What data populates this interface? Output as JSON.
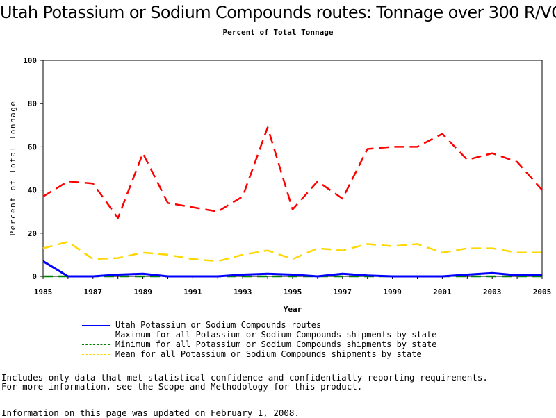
{
  "header": {
    "title": "Utah Potassium or Sodium Compounds routes: Tonnage over 300 R/VC",
    "subtitle": "Percent of Total Tonnage"
  },
  "notes": {
    "line1": "Includes only data that met statistical confidence and confidentialty reporting requirements.",
    "line2": "For more information, see the Scope and Methodology for this product.",
    "line3": "Information on this page was updated on February 1, 2008."
  },
  "colors": {
    "utah": "#0000ff",
    "maximum": "#ff0000",
    "minimum": "#008000",
    "mean": "#ffd700"
  },
  "chart_data": {
    "type": "line",
    "title": "Utah Potassium or Sodium Compounds routes: Tonnage over 300 R/VC",
    "subtitle": "Percent of Total Tonnage",
    "xlabel": "Year",
    "ylabel": "Percent of Total Tonnage",
    "xlim": [
      1985,
      2005
    ],
    "ylim": [
      0,
      100
    ],
    "x_ticks": [
      "1985",
      "1987",
      "1989",
      "1991",
      "1993",
      "1995",
      "1997",
      "1999",
      "2001",
      "2003",
      "2005"
    ],
    "y_ticks": [
      "0",
      "20",
      "40",
      "60",
      "80",
      "100"
    ],
    "grid": false,
    "legend_position": "bottom",
    "x": [
      1985,
      1986,
      1987,
      1988,
      1989,
      1990,
      1991,
      1992,
      1993,
      1994,
      1995,
      1996,
      1997,
      1998,
      1999,
      2000,
      2001,
      2002,
      2003,
      2004,
      2005
    ],
    "series": [
      {
        "name": "Utah Potassium or Sodium Compounds routes",
        "color": "#0000ff",
        "style": "solid",
        "values": [
          7,
          0,
          0,
          0.8,
          1.2,
          0,
          0,
          0,
          0.8,
          1.2,
          0.8,
          0,
          1.2,
          0.4,
          0,
          0,
          0,
          0.8,
          1.5,
          0.5,
          0.5
        ]
      },
      {
        "name": "Maximum for all Potassium or Sodium Compounds shipments by state",
        "color": "#ff0000",
        "style": "dashed",
        "values": [
          37,
          44,
          43,
          27,
          57,
          34,
          32,
          30,
          37,
          69,
          31,
          44,
          36,
          59,
          60,
          60,
          66,
          54,
          57,
          53,
          40
        ]
      },
      {
        "name": "Minimum for all Potassium or Sodium Compounds shipments by state",
        "color": "#008000",
        "style": "dashed",
        "values": [
          0,
          0,
          0,
          0,
          0,
          0,
          0,
          0,
          0,
          0,
          0,
          0,
          0,
          0,
          0,
          0,
          0,
          0,
          0,
          0,
          0
        ]
      },
      {
        "name": "Mean for all Potassium or Sodium Compounds shipments by state",
        "color": "#ffd700",
        "style": "dashed",
        "values": [
          13,
          16,
          8,
          8.5,
          11,
          10,
          8,
          7,
          10,
          12,
          8,
          13,
          12,
          15,
          14,
          15,
          11,
          13,
          13,
          11,
          11
        ]
      }
    ]
  }
}
